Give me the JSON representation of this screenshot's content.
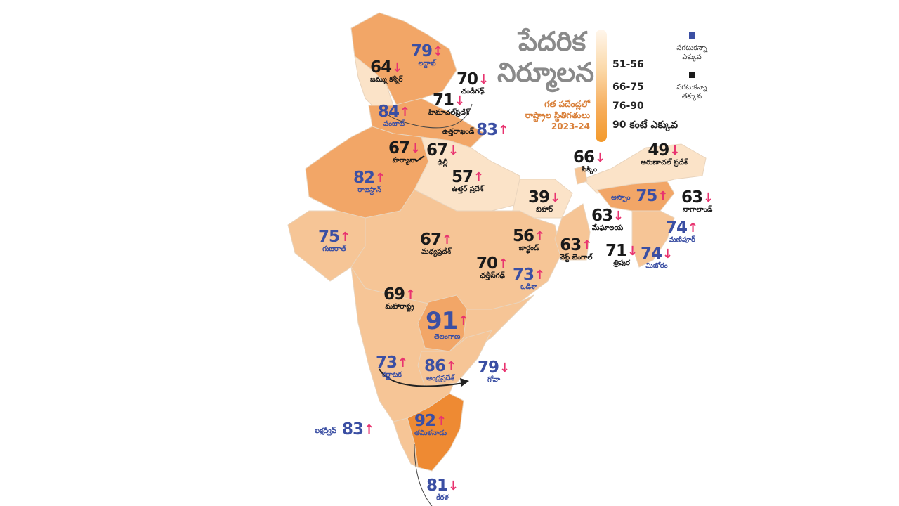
{
  "title": {
    "line1": "పేదరిక",
    "line2": "నిర్మూలన",
    "subtitle_line1": "గత పదేండ్లలో",
    "subtitle_line2": "రాష్ట్రాల స్థితిగతులు",
    "year": "2023-24"
  },
  "legend": {
    "ranges": [
      "51-56",
      "66-75",
      "76-90",
      "90 కంటే ఎక్కువ"
    ],
    "gradient_colors": [
      "#fff6ec",
      "#fbd9a9",
      "#f6ad5c",
      "#f39a2c"
    ],
    "key": [
      {
        "label_line1": "సగటుకన్నా",
        "label_line2": "ఎక్కువ",
        "color": "#3b4fa3"
      },
      {
        "label_line1": "సగటుకన్నా",
        "label_line2": "తక్కువ",
        "color": "#1a1a1a"
      }
    ]
  },
  "colors": {
    "above_average": "#3b4fa3",
    "below_average": "#1a1a1a",
    "arrow": "#e8336f",
    "map_light": "#fbe3c8",
    "map_mid": "#f6c596",
    "map_dark": "#f2a667",
    "map_top": "#ee8a33"
  },
  "states": [
    {
      "id": "ladakh",
      "value": "79",
      "name": "లద్దాఖ్",
      "trend": "both",
      "class": "above"
    },
    {
      "id": "jk",
      "value": "64",
      "name": "జమ్ము కశ్మీర్",
      "trend": "down",
      "class": "below"
    },
    {
      "id": "chandigarh",
      "value": "70",
      "name": "చండీగఢ్",
      "trend": "down",
      "class": "below"
    },
    {
      "id": "himachal",
      "value": "71",
      "name": "హిమాచల్‌ప్రదేశ్",
      "trend": "down",
      "class": "below"
    },
    {
      "id": "punjab",
      "value": "84",
      "name": "పంజాబ్",
      "trend": "up",
      "class": "above"
    },
    {
      "id": "uttarakhand",
      "value": "83",
      "name": "ఉత్తరాఖండ్",
      "trend": "up",
      "class": "above"
    },
    {
      "id": "haryana",
      "value": "67",
      "name": "హర్యానా",
      "trend": "down",
      "class": "below"
    },
    {
      "id": "delhi",
      "value": "67",
      "name": "ఢిల్లీ",
      "trend": "down",
      "class": "below"
    },
    {
      "id": "rajasthan",
      "value": "82",
      "name": "రాజస్థాన్",
      "trend": "up",
      "class": "above"
    },
    {
      "id": "up",
      "value": "57",
      "name": "ఉత్తర్‌ ప్రదేశ్",
      "trend": "up",
      "class": "below"
    },
    {
      "id": "sikkim",
      "value": "66",
      "name": "సిక్కిం",
      "trend": "down",
      "class": "below"
    },
    {
      "id": "arunachal",
      "value": "49",
      "name": "అరుణాచల్‌ ప్రదేశ్",
      "trend": "down",
      "class": "below"
    },
    {
      "id": "bihar",
      "value": "39",
      "name": "బిహార్",
      "trend": "down",
      "class": "below"
    },
    {
      "id": "assam",
      "value": "75",
      "name": "అస్సాం",
      "trend": "up",
      "class": "above"
    },
    {
      "id": "nagaland",
      "value": "63",
      "name": "నాగాలాండ్",
      "trend": "down",
      "class": "below"
    },
    {
      "id": "meghalaya",
      "value": "63",
      "name": "మేఘాలయ",
      "trend": "down",
      "class": "below"
    },
    {
      "id": "gujarat",
      "value": "75",
      "name": "గుజరాత్",
      "trend": "up",
      "class": "above"
    },
    {
      "id": "mp",
      "value": "67",
      "name": "మధ్యప్రదేశ్",
      "trend": "up",
      "class": "below"
    },
    {
      "id": "jharkhand",
      "value": "56",
      "name": "జార్ఖండ్",
      "trend": "up",
      "class": "below"
    },
    {
      "id": "westbengal",
      "value": "63",
      "name": "వెస్ట్‌ బెంగాల్",
      "trend": "up",
      "class": "below"
    },
    {
      "id": "tripura",
      "value": "71",
      "name": "త్రిపుర",
      "trend": "down",
      "class": "below"
    },
    {
      "id": "manipur",
      "value": "74",
      "name": "మణిపూర్",
      "trend": "up",
      "class": "above"
    },
    {
      "id": "mizoram",
      "value": "74",
      "name": "మిజోరం",
      "trend": "down",
      "class": "above"
    },
    {
      "id": "chhattisgarh",
      "value": "70",
      "name": "ఛత్తీస్‌గఢ్",
      "trend": "up",
      "class": "below"
    },
    {
      "id": "odisha",
      "value": "73",
      "name": "ఒడిశా",
      "trend": "up",
      "class": "above"
    },
    {
      "id": "maharashtra",
      "value": "69",
      "name": "మహారాష్ట్ర",
      "trend": "up",
      "class": "below"
    },
    {
      "id": "telangana",
      "value": "91",
      "name": "తెలంగాణ",
      "trend": "up",
      "class": "above"
    },
    {
      "id": "karnataka",
      "value": "73",
      "name": "కర్ణాటక",
      "trend": "up",
      "class": "above"
    },
    {
      "id": "ap",
      "value": "86",
      "name": "ఆంధ్రప్రదేశ్",
      "trend": "up",
      "class": "above"
    },
    {
      "id": "goa",
      "value": "79",
      "name": "గోవా",
      "trend": "down",
      "class": "above"
    },
    {
      "id": "lakshadweep",
      "value": "83",
      "name": "లక్షద్వీప్",
      "trend": "up",
      "class": "above"
    },
    {
      "id": "tamilnadu",
      "value": "92",
      "name": "తమిళనాడు",
      "trend": "up",
      "class": "above"
    },
    {
      "id": "kerala",
      "value": "81",
      "name": "కేరళ",
      "trend": "down",
      "class": "above"
    }
  ],
  "arrows": {
    "up": "↑",
    "down": "↓",
    "both": "↕"
  }
}
